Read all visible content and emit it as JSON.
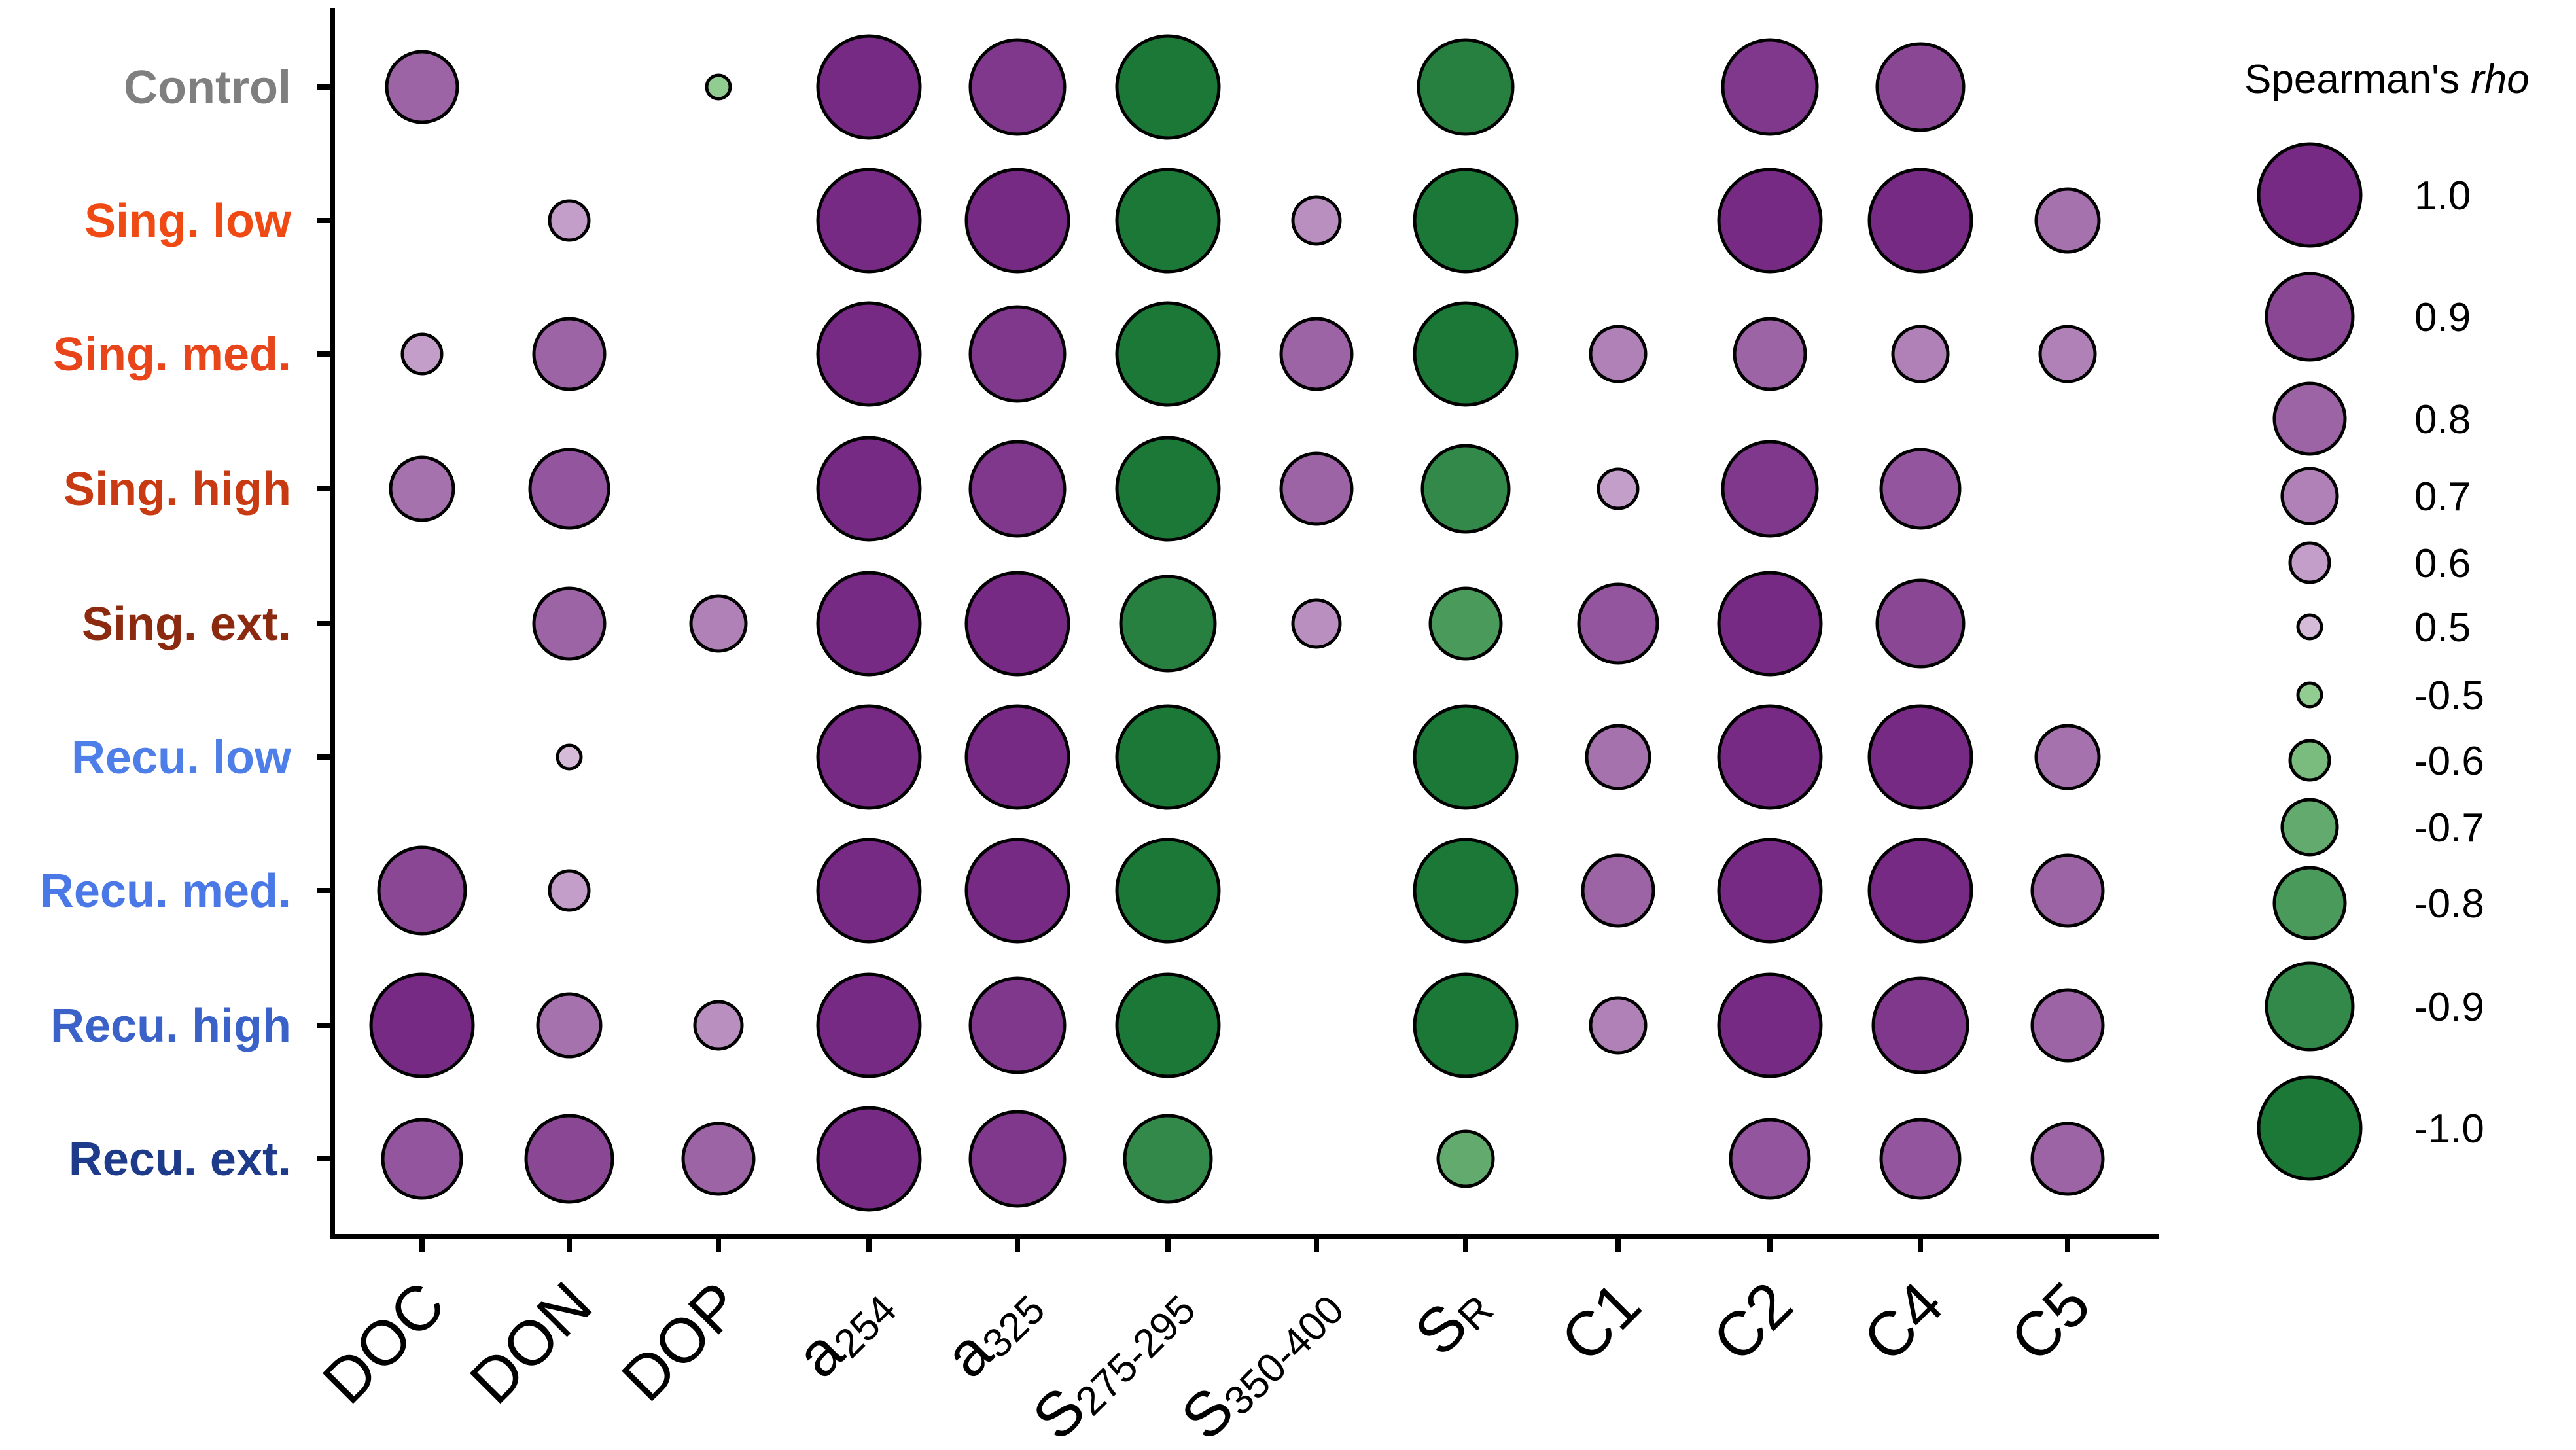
{
  "chart_data": {
    "type": "bubble-matrix",
    "rows": [
      {
        "label": "Control",
        "color": "#7f7f7f"
      },
      {
        "label": "Sing. low",
        "color": "#f04a14"
      },
      {
        "label": "Sing. med.",
        "color": "#e8461a"
      },
      {
        "label": "Sing. high",
        "color": "#c83a12"
      },
      {
        "label": "Sing. ext.",
        "color": "#8b2a0e"
      },
      {
        "label": "Recu. low",
        "color": "#4e7ee8"
      },
      {
        "label": "Recu. med.",
        "color": "#4a78e6"
      },
      {
        "label": "Recu. high",
        "color": "#3a62c8"
      },
      {
        "label": "Recu. ext.",
        "color": "#1e3a8a"
      }
    ],
    "columns": [
      {
        "main": "DOC",
        "sub": ""
      },
      {
        "main": "DON",
        "sub": ""
      },
      {
        "main": "DOP",
        "sub": ""
      },
      {
        "main": "a",
        "sub": "254"
      },
      {
        "main": "a",
        "sub": "325"
      },
      {
        "main": "S",
        "sub": "275-295"
      },
      {
        "main": "S",
        "sub": "350-400"
      },
      {
        "main": "S",
        "sub": "R"
      },
      {
        "main": "C1",
        "sub": ""
      },
      {
        "main": "C2",
        "sub": ""
      },
      {
        "main": "C4",
        "sub": ""
      },
      {
        "main": "C5",
        "sub": ""
      }
    ],
    "values": [
      [
        0.8,
        null,
        -0.5,
        1.0,
        0.95,
        -1.0,
        null,
        -0.95,
        null,
        0.95,
        0.9,
        null
      ],
      [
        null,
        0.6,
        null,
        1.0,
        1.0,
        -1.0,
        0.65,
        -1.0,
        null,
        1.0,
        1.0,
        0.75
      ],
      [
        0.6,
        0.8,
        null,
        1.0,
        0.95,
        -1.0,
        0.8,
        -1.0,
        0.7,
        0.8,
        0.7,
        0.7
      ],
      [
        0.75,
        0.85,
        null,
        1.0,
        0.95,
        -1.0,
        0.8,
        -0.9,
        0.6,
        0.95,
        0.85,
        null
      ],
      [
        null,
        0.8,
        0.7,
        1.0,
        1.0,
        -0.95,
        0.65,
        -0.8,
        0.85,
        1.0,
        0.9,
        null
      ],
      [
        null,
        0.5,
        null,
        1.0,
        1.0,
        -1.0,
        null,
        -1.0,
        0.75,
        1.0,
        1.0,
        0.75
      ],
      [
        0.9,
        0.6,
        null,
        1.0,
        1.0,
        -1.0,
        null,
        -1.0,
        0.8,
        1.0,
        1.0,
        0.8
      ],
      [
        1.0,
        0.75,
        0.65,
        1.0,
        0.95,
        -1.0,
        null,
        -1.0,
        0.7,
        1.0,
        0.95,
        0.8
      ],
      [
        0.85,
        0.9,
        0.8,
        1.0,
        0.95,
        -0.9,
        null,
        -0.7,
        null,
        0.85,
        0.85,
        0.8
      ]
    ],
    "legend": {
      "title_prefix": "Spearman's ",
      "title_italic": "rho",
      "placement": "right",
      "entries": [
        {
          "value": 1.0,
          "label": "1.0"
        },
        {
          "value": 0.9,
          "label": "0.9"
        },
        {
          "value": 0.8,
          "label": "0.8"
        },
        {
          "value": 0.7,
          "label": "0.7"
        },
        {
          "value": 0.6,
          "label": "0.6"
        },
        {
          "value": 0.5,
          "label": "0.5"
        },
        {
          "value": -0.5,
          "label": "-0.5"
        },
        {
          "value": -0.6,
          "label": "-0.6"
        },
        {
          "value": -0.7,
          "label": "-0.7"
        },
        {
          "value": -0.8,
          "label": "-0.8"
        },
        {
          "value": -0.9,
          "label": "-0.9"
        },
        {
          "value": -1.0,
          "label": "-1.0"
        }
      ]
    },
    "colors": {
      "positive_strong": "#762a83",
      "positive_weak": "#e7d4e8",
      "negative_strong": "#1b7837",
      "negative_weak": "#a6dba0"
    },
    "grid": false
  }
}
